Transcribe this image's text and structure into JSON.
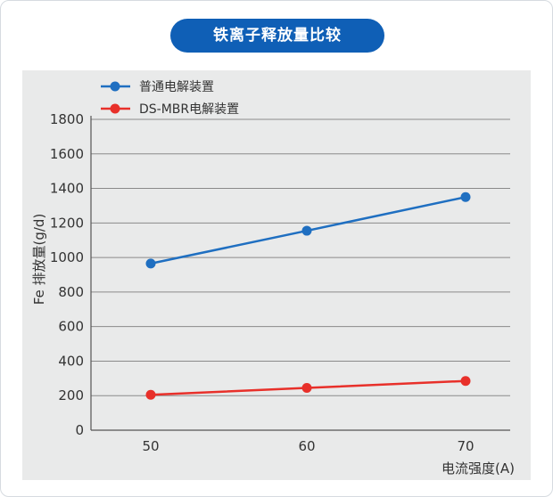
{
  "title": "铁离子释放量比较",
  "chart_data": {
    "type": "line",
    "x": [
      50,
      60,
      70
    ],
    "series": [
      {
        "name": "普通电解装置",
        "values": [
          965,
          1155,
          1350
        ],
        "color": "#1f6fc1"
      },
      {
        "name": "DS-MBR电解装置",
        "values": [
          205,
          245,
          285
        ],
        "color": "#e8302a"
      }
    ],
    "xlabel": "电流强度(A)",
    "ylabel": "Fe 排放量(g/d)",
    "ylim": [
      0,
      1800
    ],
    "yticks": [
      "0",
      "200",
      "400",
      "600",
      "800",
      "1000",
      "1200",
      "1400",
      "1600",
      "1800"
    ],
    "xticks": [
      "50",
      "60",
      "70"
    ],
    "grid": true,
    "legend": "top-left"
  }
}
